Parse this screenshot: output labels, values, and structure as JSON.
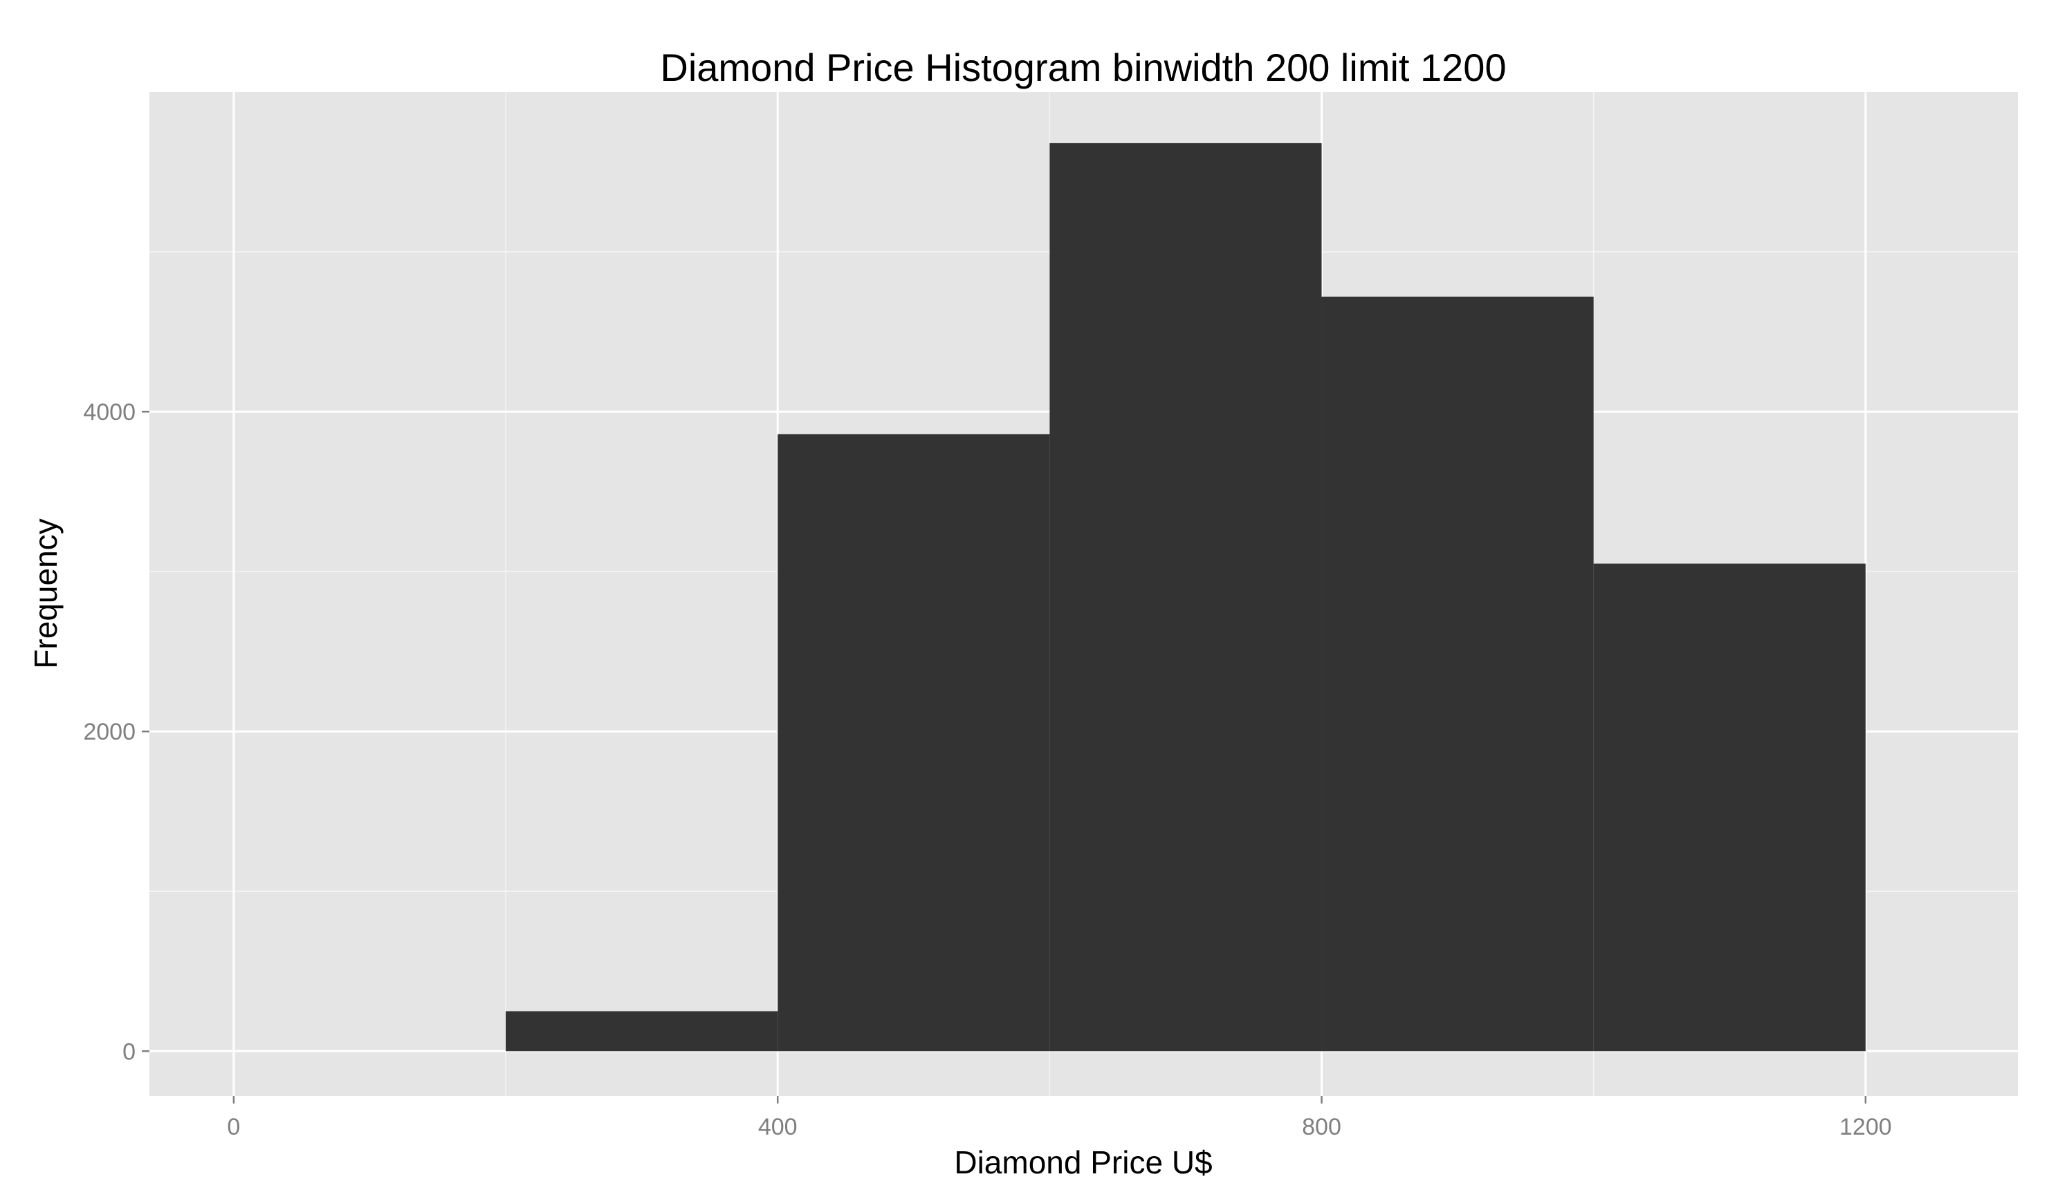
{
  "chart_data": {
    "type": "bar",
    "title": "Diamond Price Histogram binwidth 200 limit 1200",
    "xlabel": "Diamond Price U$",
    "ylabel": "Frequency",
    "binwidth": 200,
    "bins": [
      {
        "x0": 200,
        "x1": 400,
        "count": 250
      },
      {
        "x0": 400,
        "x1": 600,
        "count": 3860
      },
      {
        "x0": 600,
        "x1": 800,
        "count": 5680
      },
      {
        "x0": 800,
        "x1": 1000,
        "count": 4720
      },
      {
        "x0": 1000,
        "x1": 1200,
        "count": 3050
      }
    ],
    "xlim": [
      -62,
      1312
    ],
    "ylim": [
      -280,
      6000
    ],
    "x_ticks": [
      0,
      400,
      800,
      1200
    ],
    "x_tick_labels": [
      "0",
      "400",
      "800",
      "1200"
    ],
    "y_ticks": [
      0,
      2000,
      4000
    ],
    "y_tick_labels": [
      "0",
      "2000",
      "4000"
    ],
    "x_minor_ticks": [
      200,
      600,
      1000
    ],
    "y_minor_ticks": [
      1000,
      3000,
      5000
    ],
    "grid": true,
    "colors": {
      "panel": "#e5e5e5",
      "grid": "#ffffff",
      "bar": "#333333",
      "tick_text": "#7f7f7f"
    }
  }
}
